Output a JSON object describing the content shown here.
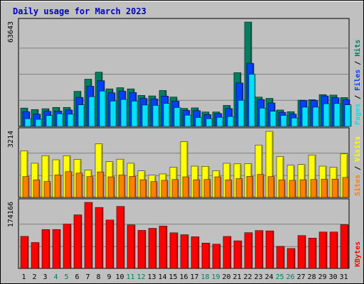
{
  "chart_data": {
    "type": "bar",
    "title": "Daily usage for March 2023",
    "categories": [
      "1",
      "2",
      "3",
      "4",
      "5",
      "6",
      "7",
      "8",
      "9",
      "10",
      "11",
      "12",
      "13",
      "14",
      "15",
      "16",
      "17",
      "18",
      "19",
      "20",
      "21",
      "22",
      "23",
      "24",
      "25",
      "26",
      "27",
      "28",
      "29",
      "30",
      "31"
    ],
    "weekend_categories": [
      "4",
      "5",
      "11",
      "12",
      "18",
      "19",
      "25",
      "26"
    ],
    "panels": [
      {
        "id": "top",
        "ymax_label": "63643",
        "ymax": 63643,
        "label_parts": [
          {
            "text": "Pages",
            "series": "Pages"
          },
          {
            "text": " / ",
            "series": null
          },
          {
            "text": "Files",
            "series": "Files"
          },
          {
            "text": " / ",
            "series": null
          },
          {
            "text": "Hits",
            "series": "Hits"
          }
        ],
        "series": [
          {
            "name": "Hits",
            "values": [
              11200,
              10300,
              10800,
              11600,
              11600,
              21400,
              28800,
              33100,
              22900,
              23600,
              22900,
              18900,
              18600,
              21900,
              17900,
              11000,
              11300,
              8800,
              8800,
              12800,
              32800,
              63643,
              17900,
              17100,
              10000,
              9000,
              16000,
              16300,
              19400,
              19100,
              17600
            ]
          },
          {
            "name": "Files",
            "values": [
              9000,
              7500,
              9200,
              9400,
              10000,
              17700,
              24500,
              27900,
              20500,
              21500,
              20700,
              17100,
              16800,
              18500,
              15400,
              9800,
              9600,
              7200,
              7900,
              10900,
              26500,
              38500,
              16400,
              14300,
              8600,
              7500,
              15800,
              15800,
              18600,
              17500,
              16200
            ]
          },
          {
            "name": "Pages",
            "values": [
              4700,
              4300,
              6600,
              7700,
              7400,
              13100,
              18100,
              21500,
              15400,
              16400,
              15400,
              13000,
              12800,
              14000,
              11500,
              6800,
              5400,
              4700,
              5500,
              6000,
              15900,
              31800,
              11100,
              9200,
              6700,
              5100,
              11700,
              11700,
              13800,
              13900,
              13100
            ]
          }
        ]
      },
      {
        "id": "middle",
        "ymax_label": "3214",
        "ymax": 3214,
        "label_parts": [
          {
            "text": "Sites",
            "series": "Sites"
          },
          {
            "text": " / ",
            "series": null
          },
          {
            "text": "Visits",
            "series": "Visits"
          }
        ],
        "series": [
          {
            "name": "Visits",
            "values": [
              2270,
              1660,
              2030,
              1830,
              2030,
              1850,
              1330,
              2610,
              1740,
              1860,
              1660,
              1290,
              1080,
              1140,
              1470,
              2710,
              1520,
              1510,
              1300,
              1660,
              1630,
              1640,
              2550,
              3214,
              1990,
              1570,
              1600,
              2060,
              1520,
              1470,
              2120
            ]
          },
          {
            "name": "Sites",
            "values": [
              1010,
              850,
              770,
              1090,
              1250,
              1180,
              1010,
              1240,
              1000,
              1090,
              1020,
              860,
              770,
              830,
              870,
              1000,
              860,
              870,
              1000,
              850,
              910,
              1020,
              1120,
              1010,
              850,
              830,
              860,
              870,
              880,
              890,
              970
            ]
          }
        ]
      },
      {
        "id": "bottom",
        "ymax_label": "174166",
        "ymax": 174166,
        "label_parts": [
          {
            "text": "KBytes",
            "series": "KBytes"
          }
        ],
        "series": [
          {
            "name": "KBytes",
            "values": [
              84500,
              68300,
              102500,
              102500,
              116800,
              141300,
              174166,
              160800,
              127600,
              163500,
              114700,
              100300,
              105700,
              111600,
              93900,
              88900,
              83400,
              66800,
              63900,
              84300,
              72800,
              94300,
              99900,
              99000,
              58100,
              52600,
              86600,
              80000,
              95900,
              95900,
              115300
            ]
          }
        ]
      }
    ],
    "colors": {
      "Hits": "#007f5f",
      "Files": "#0040ff",
      "Pages": "#00e0ff",
      "Visits": "#ffff00",
      "Sites": "#ff8000",
      "KBytes": "#ff0000",
      "title": "#0000c0",
      "axis_text": "#000000",
      "weekend_text": "#007f5f",
      "panel_bg": "#c0c0c0",
      "grid": "#808080"
    }
  }
}
